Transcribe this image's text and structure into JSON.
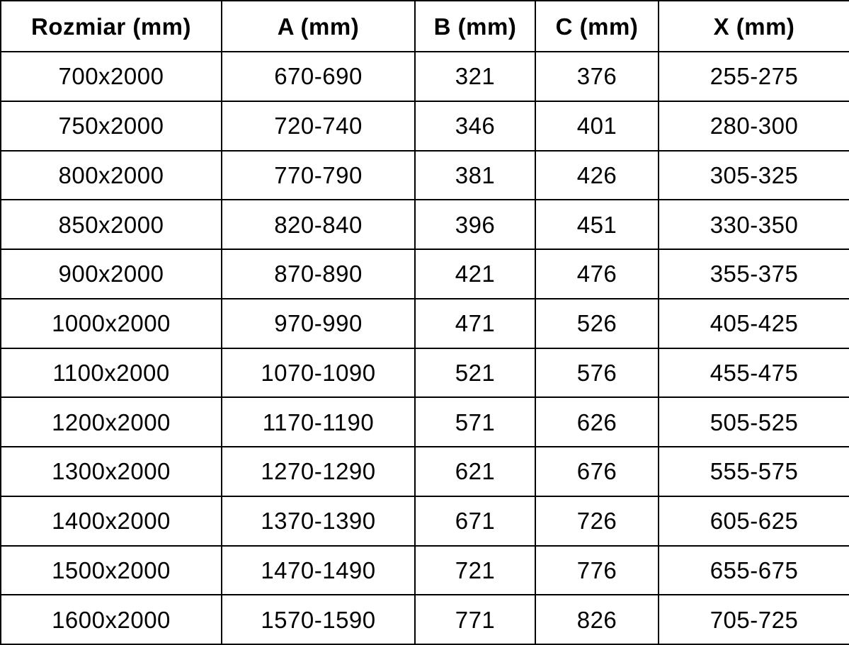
{
  "table": {
    "headers": [
      "Rozmiar (mm)",
      "A (mm)",
      "B (mm)",
      "C (mm)",
      "X (mm)"
    ],
    "rows": [
      [
        "700x2000",
        "670-690",
        "321",
        "376",
        "255-275"
      ],
      [
        "750x2000",
        "720-740",
        "346",
        "401",
        "280-300"
      ],
      [
        "800x2000",
        "770-790",
        "381",
        "426",
        "305-325"
      ],
      [
        "850x2000",
        "820-840",
        "396",
        "451",
        "330-350"
      ],
      [
        "900x2000",
        "870-890",
        "421",
        "476",
        "355-375"
      ],
      [
        "1000x2000",
        "970-990",
        "471",
        "526",
        "405-425"
      ],
      [
        "1100x2000",
        "1070-1090",
        "521",
        "576",
        "455-475"
      ],
      [
        "1200x2000",
        "1170-1190",
        "571",
        "626",
        "505-525"
      ],
      [
        "1300x2000",
        "1270-1290",
        "621",
        "676",
        "555-575"
      ],
      [
        "1400x2000",
        "1370-1390",
        "671",
        "726",
        "605-625"
      ],
      [
        "1500x2000",
        "1470-1490",
        "721",
        "776",
        "655-675"
      ],
      [
        "1600x2000",
        "1570-1590",
        "771",
        "826",
        "705-725"
      ]
    ],
    "colors": {
      "border": "#000000",
      "text": "#000000",
      "background": "#ffffff"
    }
  }
}
